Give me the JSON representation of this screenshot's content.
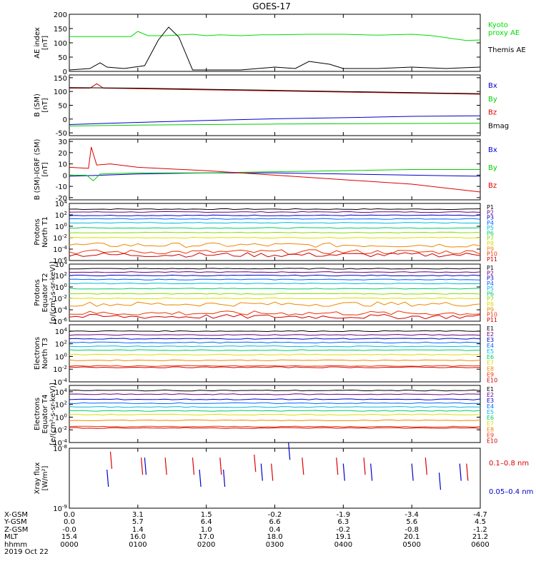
{
  "chart_data": {
    "type": "line",
    "title": "GOES-17",
    "x": [
      "0000",
      "0100",
      "0200",
      "0300",
      "0400",
      "0500",
      "0600"
    ],
    "date": "2019 Oct 22",
    "panels": [
      {
        "ylabel": [
          "AE index",
          "[nT]"
        ],
        "yticks": [
          0,
          50,
          100,
          150,
          200
        ],
        "ylim": [
          0,
          200
        ],
        "scale": "linear",
        "series": [
          {
            "name": "Kyoto proxy AE",
            "legend_lines": [
              "Kyoto",
              "proxy AE"
            ],
            "color": "#00dd00",
            "x": [
              0,
              0.5,
              0.9,
              1.0,
              1.15,
              1.4,
              1.8,
              2.0,
              2.2,
              2.5,
              2.8,
              3.0,
              3.5,
              4.0,
              4.5,
              5.0,
              5.3,
              5.5,
              5.8,
              6.0
            ],
            "y": [
              122,
              122,
              122,
              140,
              125,
              125,
              130,
              125,
              128,
              125,
              128,
              128,
              130,
              130,
              127,
              130,
              125,
              118,
              108,
              110
            ]
          },
          {
            "name": "Themis AE",
            "legend_lines": [
              "Themis AE"
            ],
            "color": "#000000",
            "x": [
              0,
              0.3,
              0.45,
              0.55,
              0.8,
              0.95,
              1.1,
              1.3,
              1.45,
              1.6,
              1.8,
              2.0,
              2.5,
              3.0,
              3.3,
              3.5,
              3.8,
              4.0,
              4.5,
              5.0,
              5.5,
              6.0
            ],
            "y": [
              5,
              10,
              30,
              15,
              10,
              15,
              20,
              110,
              155,
              120,
              5,
              5,
              5,
              15,
              10,
              35,
              25,
              10,
              10,
              15,
              10,
              15
            ]
          }
        ]
      },
      {
        "ylabel": [
          "B (SM)",
          "[nT]"
        ],
        "yticks": [
          -50,
          0,
          50,
          100,
          150
        ],
        "ylim": [
          -60,
          160
        ],
        "scale": "linear",
        "series": [
          {
            "name": "Bx",
            "color": "#0000cc",
            "x": [
              0,
              1,
              2,
              3,
              4,
              5,
              6
            ],
            "y": [
              -20,
              -12,
              -5,
              1,
              5,
              10,
              12
            ]
          },
          {
            "name": "By",
            "color": "#00cc00",
            "x": [
              0,
              1,
              2,
              3,
              4,
              5,
              6
            ],
            "y": [
              -25,
              -22,
              -20,
              -18,
              -17,
              -16,
              -15
            ]
          },
          {
            "name": "Bz",
            "color": "#dd0000",
            "x": [
              0,
              0.3,
              0.4,
              0.5,
              1,
              2,
              3,
              4,
              5,
              6
            ],
            "y": [
              112,
              112,
              128,
              112,
              110,
              106,
              102,
              98,
              94,
              90
            ]
          },
          {
            "name": "Bmag",
            "color": "#000000",
            "x": [
              0,
              1,
              2,
              3,
              4,
              5,
              6
            ],
            "y": [
              114,
              112,
              108,
              104,
              100,
              96,
              92
            ]
          }
        ]
      },
      {
        "ylabel": [
          "B (SM)-IGRF (SM)",
          "[nT]"
        ],
        "yticks": [
          -20,
          -10,
          0,
          10,
          20,
          30
        ],
        "ylim": [
          -22,
          32
        ],
        "scale": "linear",
        "series": [
          {
            "name": "Bx",
            "color": "#0000cc",
            "x": [
              0,
              0.5,
              1,
              2,
              3,
              4,
              5,
              6
            ],
            "y": [
              -1,
              0,
              1,
              2,
              2,
              1,
              0,
              -1
            ]
          },
          {
            "name": "By",
            "color": "#00cc00",
            "x": [
              0,
              0.25,
              0.35,
              0.45,
              1,
              2,
              3,
              4,
              5,
              6
            ],
            "y": [
              0,
              0,
              -5,
              1,
              2,
              2,
              3,
              4,
              5,
              5
            ]
          },
          {
            "name": "Bz",
            "color": "#dd0000",
            "x": [
              0,
              0.28,
              0.32,
              0.4,
              0.6,
              1,
              2,
              2.5,
              3,
              4,
              5,
              6
            ],
            "y": [
              7,
              6,
              25,
              9,
              10,
              7,
              4,
              2,
              0,
              -4,
              -8,
              -15
            ]
          }
        ]
      },
      {
        "ylabel": [
          "Protons",
          "North T1"
        ],
        "yticks": [
          "10^4",
          "10^2",
          "10^0",
          "10^-2",
          "10^-4",
          "10^-6"
        ],
        "ylim": [
          -6,
          4
        ],
        "scale": "log",
        "series": [
          {
            "name": "P1",
            "color": "#000000",
            "level": 3.0
          },
          {
            "name": "P2",
            "color": "#6a0080",
            "level": 2.5
          },
          {
            "name": "P3",
            "color": "#0000cc",
            "level": 1.9
          },
          {
            "name": "P4",
            "color": "#0066ff",
            "level": 1.3
          },
          {
            "name": "P5",
            "color": "#00bbdd",
            "level": 0.6
          },
          {
            "name": "P6",
            "color": "#00cc66",
            "level": -0.3
          },
          {
            "name": "P7",
            "color": "#88dd00",
            "level": -1.1
          },
          {
            "name": "P8",
            "color": "#dddd00",
            "level": -2.0
          },
          {
            "name": "P9",
            "color": "#ee8800",
            "level": -3.3
          },
          {
            "name": "P10",
            "color": "#ee3300",
            "level": -4.5
          },
          {
            "name": "P11",
            "color": "#cc0000",
            "level": -5.0
          }
        ]
      },
      {
        "ylabel": [
          "Protons",
          "Equator T2",
          "[p/(cm²-s-sr-keV)]"
        ],
        "yticks": [
          "10^4",
          "10^2",
          "10^0",
          "10^-2",
          "10^-4",
          "10^-6"
        ],
        "ylim": [
          -6,
          4
        ],
        "scale": "log",
        "series": [
          {
            "name": "P1",
            "color": "#000000",
            "level": 3.2
          },
          {
            "name": "P2",
            "color": "#6a0080",
            "level": 2.6
          },
          {
            "name": "P3",
            "color": "#0000cc",
            "level": 2.0
          },
          {
            "name": "P4",
            "color": "#0066ff",
            "level": 1.3
          },
          {
            "name": "P5",
            "color": "#00bbdd",
            "level": 0.6
          },
          {
            "name": "P6",
            "color": "#00cc66",
            "level": -0.3
          },
          {
            "name": "P7",
            "color": "#88dd00",
            "level": -1.2
          },
          {
            "name": "P8",
            "color": "#dddd00",
            "level": -2.0
          },
          {
            "name": "P9",
            "color": "#ee8800",
            "level": -3.0
          },
          {
            "name": "P10",
            "color": "#ee3300",
            "level": -4.6
          },
          {
            "name": "P11",
            "color": "#cc0000",
            "level": -5.2
          }
        ]
      },
      {
        "ylabel": [
          "Electrons",
          "North T3"
        ],
        "yticks": [
          "10^4",
          "10^2",
          "10^0",
          "10^-2",
          "10^-4"
        ],
        "ylim": [
          -4,
          5
        ],
        "scale": "log",
        "series": [
          {
            "name": "E1",
            "color": "#000000",
            "level": 4.0
          },
          {
            "name": "E2",
            "color": "#6a0080",
            "level": 3.4
          },
          {
            "name": "E3",
            "color": "#0000cc",
            "level": 2.8
          },
          {
            "name": "E4",
            "color": "#0066ff",
            "level": 2.2
          },
          {
            "name": "E5",
            "color": "#00bbdd",
            "level": 1.6
          },
          {
            "name": "E6",
            "color": "#00cc66",
            "level": 1.0
          },
          {
            "name": "E7",
            "color": "#dddd00",
            "level": 0.3
          },
          {
            "name": "E8",
            "color": "#ee8800",
            "level": -0.6
          },
          {
            "name": "E9",
            "color": "#ee3300",
            "level": -1.5
          },
          {
            "name": "E10",
            "color": "#cc0000",
            "level": -1.7
          }
        ]
      },
      {
        "ylabel": [
          "Electrons",
          "Equator T4",
          "[e/(cm²-s-sr-keV)]"
        ],
        "yticks": [
          "10^4",
          "10^2",
          "10^0",
          "10^-2",
          "10^-4"
        ],
        "ylim": [
          -4,
          5
        ],
        "scale": "log",
        "series": [
          {
            "name": "E1",
            "color": "#000000",
            "level": 4.2
          },
          {
            "name": "E2",
            "color": "#6a0080",
            "level": 3.6
          },
          {
            "name": "E3",
            "color": "#0000cc",
            "level": 2.8
          },
          {
            "name": "E4",
            "color": "#0066ff",
            "level": 2.2
          },
          {
            "name": "E5",
            "color": "#00bbdd",
            "level": 1.6
          },
          {
            "name": "E6",
            "color": "#00cc66",
            "level": 1.0
          },
          {
            "name": "E7",
            "color": "#dddd00",
            "level": 0.4
          },
          {
            "name": "E8",
            "color": "#ee8800",
            "level": -0.5
          },
          {
            "name": "E9",
            "color": "#ee3300",
            "level": -1.5
          },
          {
            "name": "E10",
            "color": "#cc0000",
            "level": -1.7
          }
        ]
      },
      {
        "ylabel": [
          "Xray flux",
          "[W/m²]"
        ],
        "yticks": [
          "10^-8",
          "10^-9"
        ],
        "ylim": [
          -9,
          -8
        ],
        "scale": "log",
        "series": [
          {
            "name": "0.1–0.8 nm",
            "color": "#dd0000",
            "x": [
              0.6,
              1.05,
              1.4,
              1.8,
              2.2,
              2.7,
              2.95,
              3.4,
              3.9,
              4.3,
              5.2,
              5.8
            ],
            "y": [
              -8.2,
              -8.3,
              -8.3,
              -8.3,
              -8.3,
              -8.25,
              -8.4,
              -8.3,
              -8.3,
              -8.3,
              -8.3,
              -8.4
            ]
          },
          {
            "name": "0.05–0.4 nm",
            "color": "#0000cc",
            "x": [
              0.55,
              1.1,
              1.9,
              2.25,
              2.8,
              3.2,
              4.0,
              4.4,
              5.0,
              5.4,
              5.7
            ],
            "y": [
              -8.5,
              -8.3,
              -8.5,
              -8.5,
              -8.4,
              -8.05,
              -8.4,
              -8.4,
              -8.4,
              -8.55,
              -8.4
            ]
          }
        ]
      }
    ]
  },
  "footer": {
    "rows": [
      {
        "label": "X-GSM",
        "values": [
          "0.0",
          "3.1",
          "1.5",
          "-0.2",
          "-1.9",
          "-3.4",
          "-4.7"
        ]
      },
      {
        "label": "Y-GSM",
        "values": [
          "0.0",
          "5.7",
          "6.4",
          "6.6",
          "6.3",
          "5.6",
          "4.5"
        ]
      },
      {
        "label": "Z-GSM",
        "values": [
          "-0.0",
          "1.4",
          "1.0",
          "0.4",
          "-0.2",
          "-0.8",
          "-1.2"
        ]
      },
      {
        "label": "MLT",
        "values": [
          "15.4",
          "16.0",
          "17.0",
          "18.0",
          "19.1",
          "20.1",
          "21.2"
        ]
      },
      {
        "label": "hhmm",
        "values": [
          "0000",
          "0100",
          "0200",
          "0300",
          "0400",
          "0500",
          "0600"
        ]
      }
    ],
    "date": "2019 Oct 22"
  },
  "colors": {
    "frame": "#000000",
    "background": "#ffffff"
  }
}
